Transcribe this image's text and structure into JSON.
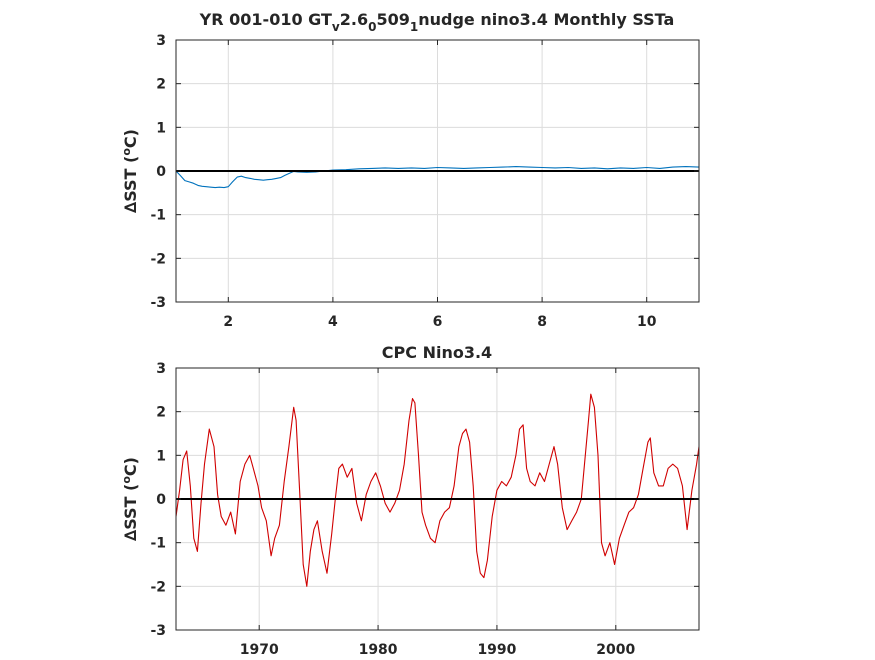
{
  "chart_data": [
    {
      "type": "line",
      "title": "YR 001-010 GT",
      "title_parts": [
        "YR 001-010 GT",
        "v",
        "2.6",
        "0",
        "509",
        "1",
        "nudge nino3.4 Monthly SSTa"
      ],
      "xlabel": "",
      "ylabel_prefix": "∆SST (",
      "ylabel_sup": "o",
      "ylabel_suffix": "C)",
      "xlim": [
        1,
        11
      ],
      "ylim": [
        -3,
        3
      ],
      "xticks": [
        2,
        4,
        6,
        8,
        10
      ],
      "yticks": [
        -3,
        -2,
        -1,
        0,
        1,
        2,
        3
      ],
      "grid": true,
      "color": "#0072bd",
      "zero_line": true,
      "series": [
        {
          "x": [
            1.0,
            1.08,
            1.17,
            1.25,
            1.33,
            1.42,
            1.5,
            1.58,
            1.67,
            1.75,
            1.83,
            1.92,
            2.0,
            2.08,
            2.17,
            2.25,
            2.33,
            2.42,
            2.5,
            2.58,
            2.67,
            2.75,
            2.83,
            2.92,
            3.0,
            3.08,
            3.17,
            3.25,
            3.33,
            3.5,
            3.67,
            3.83,
            4.0,
            4.25,
            4.5,
            4.75,
            5.0,
            5.25,
            5.5,
            5.75,
            6.0,
            6.25,
            6.5,
            6.75,
            7.0,
            7.25,
            7.5,
            7.75,
            8.0,
            8.25,
            8.5,
            8.75,
            9.0,
            9.25,
            9.5,
            9.75,
            10.0,
            10.25,
            10.5,
            10.75,
            11.0
          ],
          "values": [
            0.0,
            -0.1,
            -0.22,
            -0.25,
            -0.28,
            -0.33,
            -0.35,
            -0.36,
            -0.37,
            -0.38,
            -0.37,
            -0.38,
            -0.36,
            -0.25,
            -0.14,
            -0.12,
            -0.15,
            -0.17,
            -0.19,
            -0.2,
            -0.21,
            -0.2,
            -0.19,
            -0.17,
            -0.15,
            -0.1,
            -0.05,
            -0.01,
            -0.02,
            -0.03,
            -0.02,
            0.0,
            0.02,
            0.03,
            0.05,
            0.06,
            0.07,
            0.06,
            0.07,
            0.06,
            0.08,
            0.07,
            0.06,
            0.07,
            0.08,
            0.09,
            0.1,
            0.09,
            0.08,
            0.07,
            0.08,
            0.06,
            0.07,
            0.05,
            0.07,
            0.06,
            0.08,
            0.06,
            0.09,
            0.1,
            0.09
          ]
        }
      ]
    },
    {
      "type": "line",
      "title": "CPC Nino3.4",
      "xlabel": "",
      "ylabel_prefix": "∆SST (",
      "ylabel_sup": "o",
      "ylabel_suffix": "C)",
      "xlim": [
        1963,
        2007
      ],
      "ylim": [
        -3,
        3
      ],
      "xticks": [
        1970,
        1980,
        1990,
        2000
      ],
      "yticks": [
        -3,
        -2,
        -1,
        0,
        1,
        2,
        3
      ],
      "grid": true,
      "color": "#d00000",
      "zero_line": true,
      "series": [
        {
          "x": [
            1963.0,
            1963.3,
            1963.6,
            1963.9,
            1964.2,
            1964.5,
            1964.8,
            1965.1,
            1965.4,
            1965.8,
            1966.2,
            1966.5,
            1966.8,
            1967.2,
            1967.6,
            1968.0,
            1968.4,
            1968.8,
            1969.2,
            1969.5,
            1969.9,
            1970.2,
            1970.6,
            1971.0,
            1971.3,
            1971.7,
            1972.1,
            1972.5,
            1972.9,
            1973.1,
            1973.4,
            1973.7,
            1974.0,
            1974.3,
            1974.6,
            1974.9,
            1975.3,
            1975.7,
            1976.1,
            1976.4,
            1976.7,
            1977.0,
            1977.4,
            1977.8,
            1978.2,
            1978.6,
            1979.0,
            1979.4,
            1979.8,
            1980.2,
            1980.6,
            1981.0,
            1981.4,
            1981.8,
            1982.2,
            1982.6,
            1982.9,
            1983.1,
            1983.4,
            1983.7,
            1984.0,
            1984.4,
            1984.8,
            1985.2,
            1985.6,
            1986.0,
            1986.4,
            1986.8,
            1987.1,
            1987.4,
            1987.7,
            1988.0,
            1988.3,
            1988.6,
            1988.9,
            1989.2,
            1989.6,
            1990.0,
            1990.4,
            1990.8,
            1991.2,
            1991.6,
            1991.9,
            1992.2,
            1992.5,
            1992.8,
            1993.2,
            1993.6,
            1994.0,
            1994.4,
            1994.8,
            1995.1,
            1995.5,
            1995.9,
            1996.3,
            1996.7,
            1997.1,
            1997.4,
            1997.7,
            1997.9,
            1998.2,
            1998.5,
            1998.8,
            1999.1,
            1999.5,
            1999.9,
            2000.3,
            2000.7,
            2001.1,
            2001.5,
            2001.9,
            2002.3,
            2002.7,
            2002.9,
            2003.2,
            2003.6,
            2004.0,
            2004.4,
            2004.8,
            2005.2,
            2005.6,
            2006.0,
            2006.4,
            2006.8,
            2007.0
          ],
          "values": [
            -0.4,
            0.2,
            0.9,
            1.1,
            0.3,
            -0.9,
            -1.2,
            -0.1,
            0.8,
            1.6,
            1.2,
            0.1,
            -0.4,
            -0.6,
            -0.3,
            -0.8,
            0.4,
            0.8,
            1.0,
            0.7,
            0.3,
            -0.2,
            -0.5,
            -1.3,
            -0.9,
            -0.6,
            0.4,
            1.2,
            2.1,
            1.8,
            0.2,
            -1.5,
            -2.0,
            -1.2,
            -0.7,
            -0.5,
            -1.2,
            -1.7,
            -0.8,
            0.0,
            0.7,
            0.8,
            0.5,
            0.7,
            -0.1,
            -0.5,
            0.1,
            0.4,
            0.6,
            0.3,
            -0.1,
            -0.3,
            -0.1,
            0.2,
            0.8,
            1.8,
            2.3,
            2.2,
            1.0,
            -0.3,
            -0.6,
            -0.9,
            -1.0,
            -0.5,
            -0.3,
            -0.2,
            0.3,
            1.2,
            1.5,
            1.6,
            1.3,
            0.3,
            -1.2,
            -1.7,
            -1.8,
            -1.4,
            -0.4,
            0.2,
            0.4,
            0.3,
            0.5,
            1.0,
            1.6,
            1.7,
            0.7,
            0.4,
            0.3,
            0.6,
            0.4,
            0.8,
            1.2,
            0.8,
            -0.2,
            -0.7,
            -0.5,
            -0.3,
            0.0,
            0.9,
            1.8,
            2.4,
            2.1,
            1.0,
            -1.0,
            -1.3,
            -1.0,
            -1.5,
            -0.9,
            -0.6,
            -0.3,
            -0.2,
            0.1,
            0.7,
            1.3,
            1.4,
            0.6,
            0.3,
            0.3,
            0.7,
            0.8,
            0.7,
            0.3,
            -0.7,
            0.2,
            0.8,
            1.2
          ]
        }
      ]
    }
  ]
}
